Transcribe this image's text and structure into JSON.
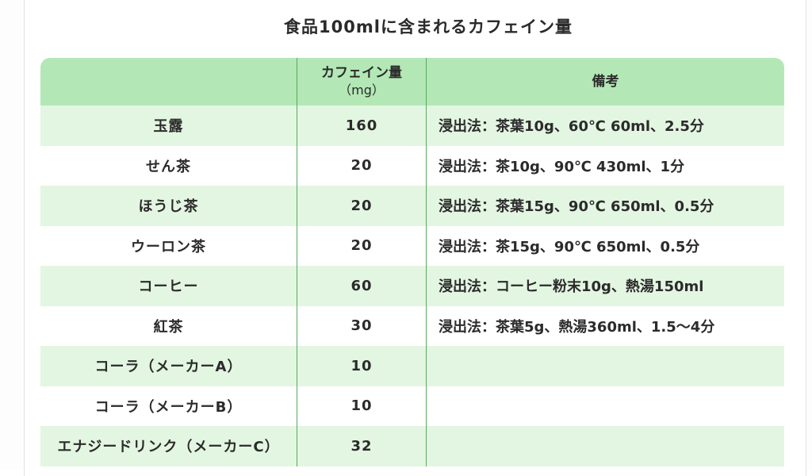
{
  "title": "食品100mlに含まれるカフェイン量",
  "table": {
    "headers": {
      "name": "",
      "amount": "カフェイン量",
      "amount_unit": "（mg）",
      "note": "備考"
    },
    "rows": [
      {
        "name": "玉露",
        "amount": "160",
        "note": "浸出法：茶葉10g、60℃ 60ml、2.5分"
      },
      {
        "name": "せん茶",
        "amount": "20",
        "note": "浸出法：茶10g、90℃ 430ml、1分"
      },
      {
        "name": "ほうじ茶",
        "amount": "20",
        "note": "浸出法：茶葉15g、90℃ 650ml、0.5分"
      },
      {
        "name": "ウーロン茶",
        "amount": "20",
        "note": "浸出法：茶15g、90℃ 650ml、0.5分"
      },
      {
        "name": "コーヒー",
        "amount": "60",
        "note": "浸出法：コーヒー粉末10g、熱湯150ml"
      },
      {
        "name": "紅茶",
        "amount": "30",
        "note": "浸出法：茶葉5g、熱湯360ml、1.5～4分"
      },
      {
        "name": "コーラ（メーカーA）",
        "amount": "10",
        "note": ""
      },
      {
        "name": "コーラ（メーカーB）",
        "amount": "10",
        "note": ""
      },
      {
        "name": "エナジードリンク（メーカーC）",
        "amount": "32",
        "note": ""
      }
    ]
  },
  "colors": {
    "header_bg": "#b3e8b6",
    "stripe_bg": "#e3f6e2",
    "divider": "#5aa85d"
  }
}
